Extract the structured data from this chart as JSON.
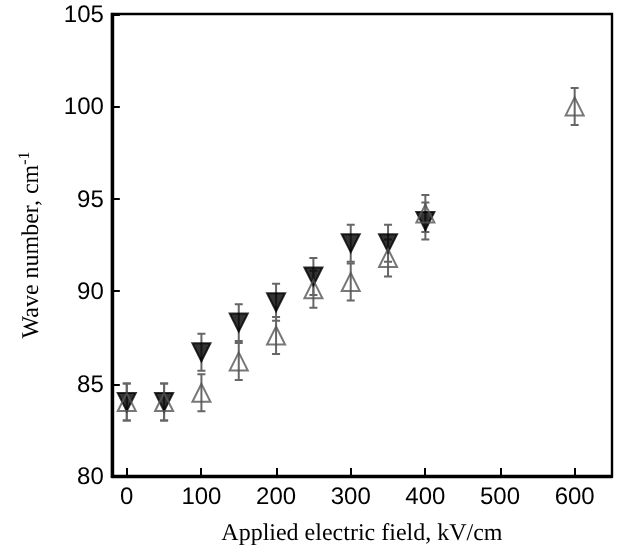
{
  "chart_data": {
    "type": "scatter",
    "xlabel": "Applied electric field, kV/cm",
    "ylabel": "Wave number, cm$^{-1}$",
    "xlim": [
      -20,
      650
    ],
    "xticks": [
      0,
      100,
      200,
      300,
      400,
      500,
      600
    ],
    "ylim": [
      80,
      105
    ],
    "yticks": [
      80,
      85,
      90,
      95,
      100,
      105
    ],
    "grid": false,
    "series": [
      {
        "color": "#000000",
        "marker": "triangle-down",
        "x": [
          0,
          50,
          100,
          150,
          200,
          250,
          300,
          350,
          400
        ],
        "values": [
          84,
          84,
          86.7,
          88.3,
          89.4,
          90.8,
          92.6,
          92.6,
          93.8
        ],
        "errors": [
          1,
          1,
          1,
          1,
          1,
          1,
          1,
          1,
          1
        ]
      },
      {
        "color": "#555555",
        "marker": "triangle",
        "x": [
          0,
          50,
          100,
          150,
          200,
          250,
          300,
          350,
          400,
          600
        ],
        "values": [
          84,
          84,
          84.5,
          86.2,
          87.6,
          90.1,
          90.5,
          91.8,
          94.2,
          100
        ],
        "errors": [
          1,
          1,
          1,
          1,
          1,
          1,
          1,
          1,
          1,
          1
        ]
      }
    ]
  }
}
